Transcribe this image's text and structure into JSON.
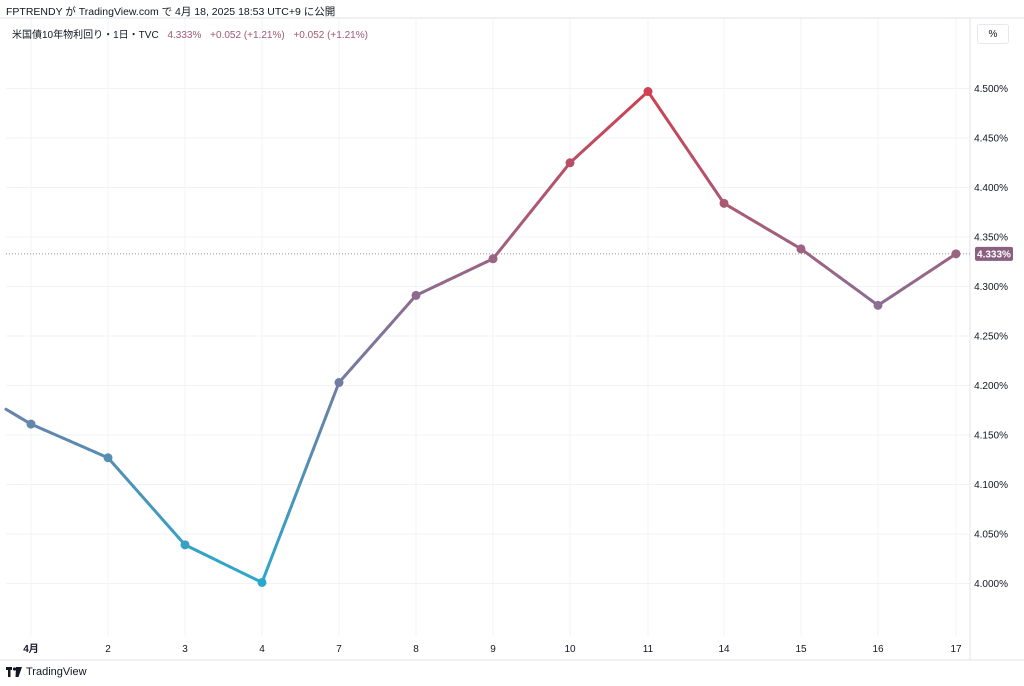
{
  "header": {
    "publish_text": "FPTRENDY が TradingView.com で 4月 18, 2025 18:53 UTC+9 に公開"
  },
  "legend": {
    "symbol": "米国債10年物利回り・1日・TVC",
    "last": "4.333%",
    "change": "+0.052 (+1.21%)",
    "change2": "+0.052 (+1.21%)"
  },
  "unit_label": "%",
  "footer": {
    "brand": "TradingView"
  },
  "colors": {
    "low": "#2ba8cc",
    "mid": "#8a6e92",
    "high": "#d04050",
    "price_tag": "#8a5f80",
    "grid": "#f0f3fa"
  },
  "chart_data": {
    "type": "line",
    "x": [
      "",
      "4月",
      "2",
      "3",
      "4",
      "7",
      "8",
      "9",
      "10",
      "11",
      "14",
      "15",
      "16",
      "17"
    ],
    "values": [
      4.176,
      4.161,
      4.127,
      4.039,
      4.001,
      4.203,
      4.291,
      4.328,
      4.425,
      4.497,
      4.384,
      4.338,
      4.281,
      4.333
    ],
    "ylim": [
      3.955,
      4.545
    ],
    "yticks": [
      "4.000%",
      "4.050%",
      "4.100%",
      "4.150%",
      "4.200%",
      "4.250%",
      "4.300%",
      "4.350%",
      "4.400%",
      "4.450%",
      "4.500%"
    ],
    "ytick_values": [
      4.0,
      4.05,
      4.1,
      4.15,
      4.2,
      4.25,
      4.3,
      4.35,
      4.4,
      4.45,
      4.5
    ],
    "last_value": 4.333,
    "last_label": "4.333%",
    "grid": true,
    "legend": "top-left"
  }
}
